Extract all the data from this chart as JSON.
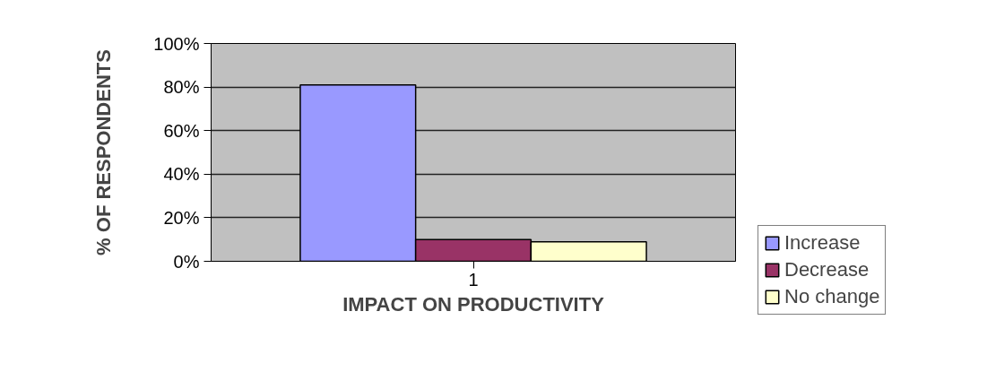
{
  "chart_data": {
    "type": "bar",
    "xlabel": "IMPACT ON PRODUCTIVITY",
    "ylabel": "% OF RESPONDENTS",
    "categories": [
      "1"
    ],
    "series": [
      {
        "name": "Increase",
        "color": "#9999ff",
        "values": [
          81
        ]
      },
      {
        "name": "Decrease",
        "color": "#993366",
        "values": [
          10
        ]
      },
      {
        "name": "No change",
        "color": "#ffffcc",
        "values": [
          9
        ]
      }
    ],
    "ylim": [
      0,
      100
    ],
    "yticks": [
      {
        "value": 0,
        "label": "0%"
      },
      {
        "value": 20,
        "label": "20%"
      },
      {
        "value": 40,
        "label": "40%"
      },
      {
        "value": 60,
        "label": "60%"
      },
      {
        "value": 80,
        "label": "80%"
      },
      {
        "value": 100,
        "label": "100%"
      }
    ],
    "grid": "y",
    "legend": "right"
  }
}
